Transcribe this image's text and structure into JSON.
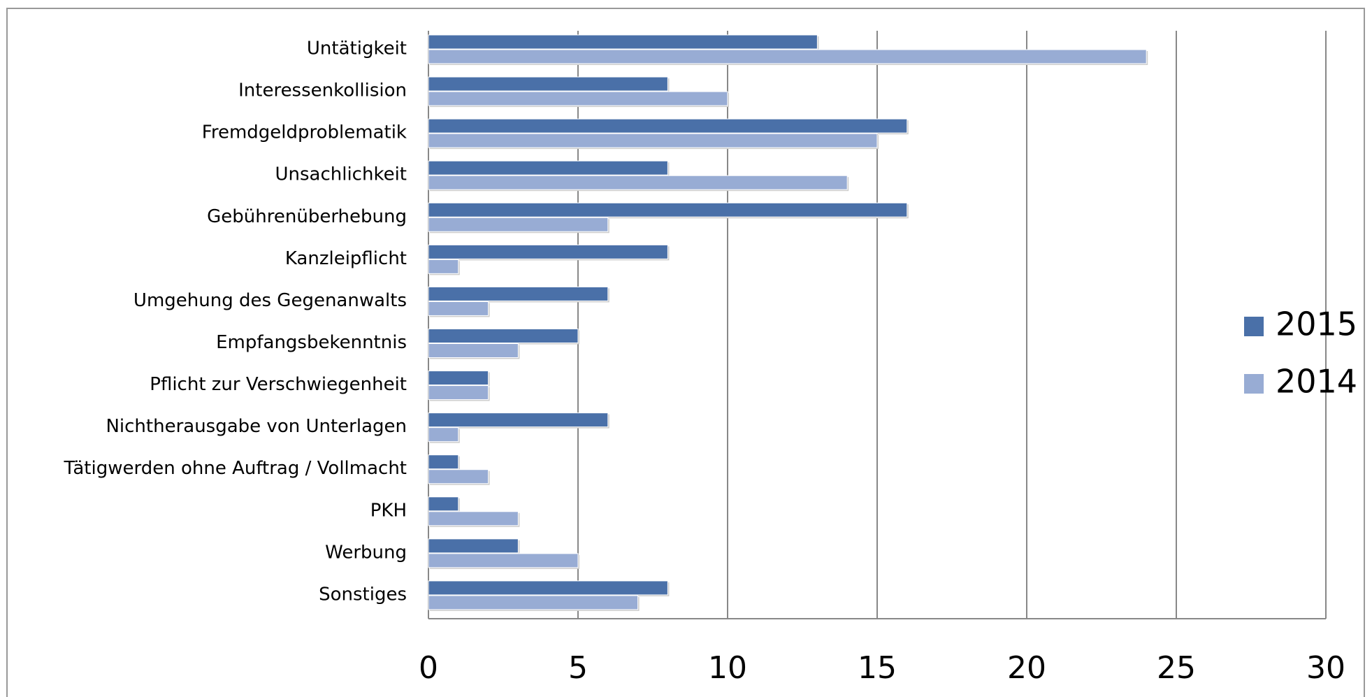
{
  "chart_data": {
    "type": "bar",
    "orientation": "horizontal",
    "categories": [
      "Untätigkeit",
      "Interessenkollision",
      "Fremdgeldproblematik",
      "Unsachlichkeit",
      "Gebührenüberhebung",
      "Kanzleipflicht",
      "Umgehung des Gegenanwalts",
      "Empfangsbekenntnis",
      "Pflicht zur Verschwiegenheit",
      "Nichtherausgabe von Unterlagen",
      "Tätigwerden ohne Auftrag / Vollmacht",
      "PKH",
      "Werbung",
      "Sonstiges"
    ],
    "series": [
      {
        "name": "2015",
        "color": "#4a70a8",
        "values": [
          13,
          8,
          16,
          8,
          16,
          8,
          6,
          5,
          2,
          6,
          1,
          1,
          3,
          8
        ]
      },
      {
        "name": "2014",
        "color": "#98acd4",
        "values": [
          24,
          10,
          15,
          14,
          6,
          1,
          2,
          3,
          2,
          1,
          2,
          3,
          5,
          7
        ]
      }
    ],
    "xlim": [
      0,
      30
    ],
    "xticks": [
      0,
      5,
      10,
      15,
      20,
      25,
      30
    ],
    "grid": true,
    "legend": "right"
  }
}
